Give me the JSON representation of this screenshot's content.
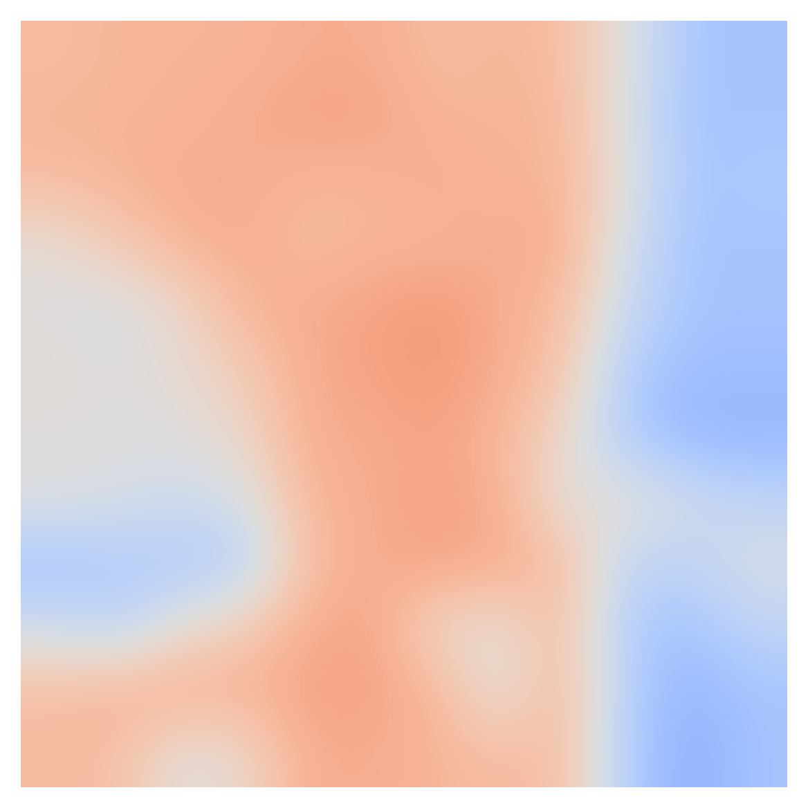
{
  "chart_data": {
    "type": "heatmap",
    "color": "coolwarm",
    "value_range": [
      -1,
      1
    ],
    "tick_labels": false,
    "cells": [
      [
        0.3,
        0.35,
        0.35,
        0.35,
        0.4,
        0.4,
        0.3,
        0.35,
        0.3,
        0.0,
        -0.35,
        -0.35
      ],
      [
        0.35,
        0.35,
        0.35,
        0.4,
        0.45,
        0.45,
        0.35,
        0.35,
        0.35,
        -0.05,
        -0.35,
        -0.35
      ],
      [
        0.3,
        0.35,
        0.4,
        0.4,
        0.35,
        0.35,
        0.4,
        0.35,
        0.35,
        0.0,
        -0.35,
        -0.3
      ],
      [
        0.05,
        0.2,
        0.35,
        0.4,
        0.3,
        0.35,
        0.35,
        0.4,
        0.4,
        -0.1,
        -0.35,
        -0.35
      ],
      [
        0.0,
        -0.05,
        0.1,
        0.35,
        0.4,
        0.45,
        0.5,
        0.4,
        0.3,
        -0.15,
        -0.35,
        -0.35
      ],
      [
        0.05,
        0.0,
        0.05,
        0.2,
        0.4,
        0.45,
        0.5,
        0.4,
        0.25,
        -0.3,
        -0.4,
        -0.4
      ],
      [
        0.0,
        0.0,
        0.0,
        0.1,
        0.4,
        0.4,
        0.45,
        0.35,
        0.1,
        -0.3,
        -0.45,
        -0.45
      ],
      [
        0.0,
        -0.05,
        -0.1,
        -0.05,
        0.35,
        0.4,
        0.45,
        0.4,
        0.0,
        0.05,
        -0.1,
        -0.2
      ],
      [
        -0.35,
        -0.3,
        -0.3,
        -0.25,
        0.3,
        0.4,
        0.45,
        0.4,
        0.3,
        -0.2,
        -0.2,
        -0.05
      ],
      [
        -0.1,
        -0.2,
        0.05,
        0.2,
        0.4,
        0.45,
        0.1,
        0.05,
        0.3,
        -0.3,
        -0.35,
        -0.2
      ],
      [
        0.3,
        0.35,
        0.4,
        0.35,
        0.45,
        0.45,
        0.35,
        0.0,
        0.35,
        -0.3,
        -0.45,
        -0.35
      ],
      [
        0.3,
        0.3,
        0.0,
        0.1,
        0.4,
        0.4,
        0.35,
        0.3,
        0.3,
        -0.3,
        -0.5,
        -0.35
      ]
    ]
  }
}
